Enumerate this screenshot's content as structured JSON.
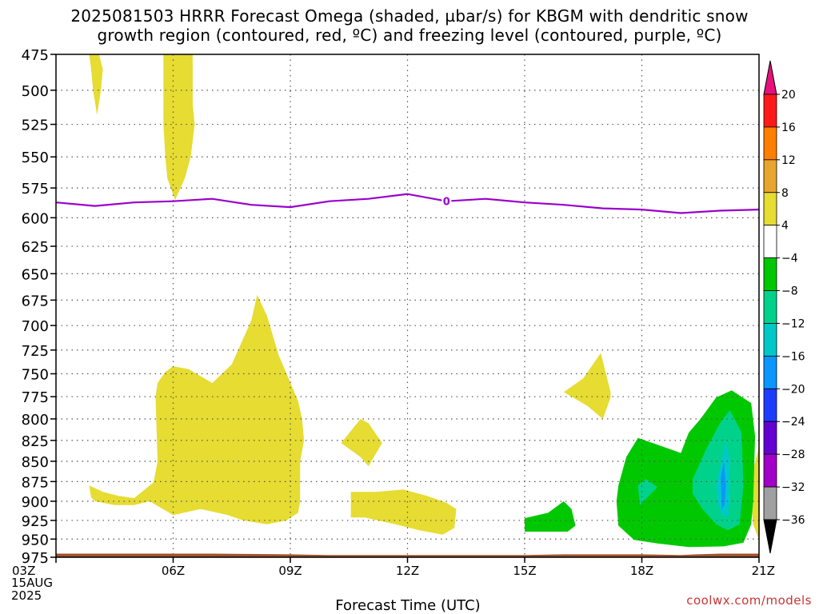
{
  "title_line1": "2025081503 HRRR Forecast Omega (shaded, µbar/s) for KBGM with dendritic snow",
  "title_line2": "growth region (contoured, red, ºC) and freezing level (contoured, purple, ºC)",
  "watermark": "coolwx.com/models",
  "chart_data": {
    "type": "heatmap",
    "xlabel": "Forecast Time (UTC)",
    "x_start_label": [
      "03Z",
      "15AUG",
      "2025"
    ],
    "x_ticks": [
      "03Z",
      "06Z",
      "09Z",
      "12Z",
      "15Z",
      "18Z",
      "21Z"
    ],
    "x_tick_hours": [
      3,
      6,
      9,
      12,
      15,
      18,
      21
    ],
    "xlim": [
      3,
      21
    ],
    "y_ticks": [
      475,
      500,
      525,
      550,
      575,
      600,
      625,
      650,
      675,
      700,
      725,
      750,
      775,
      800,
      825,
      850,
      875,
      900,
      925,
      950,
      975
    ],
    "ylim_hpa": [
      475,
      975
    ],
    "y_scale": "log-pressure",
    "grid": true,
    "colorbar_labels": [
      "20",
      "16",
      "12",
      "8",
      "4",
      "−4",
      "−8",
      "−12",
      "−16",
      "−20",
      "−24",
      "−28",
      "−32",
      "−36"
    ],
    "colorbar_colors": [
      "#ff1a1a",
      "#ff8000",
      "#e8a62e",
      "#e6dc32",
      "#ffffff",
      "#00c800",
      "#00d28c",
      "#00c8c8",
      "#0a96ff",
      "#1e3cff",
      "#6400d2",
      "#a000c8",
      "#a0a0a0"
    ],
    "colorbar_top_color": "#e6117a",
    "colorbar_bottom_color": "#000000",
    "colors": {
      "omega_plus4": "#e6dc32",
      "omega_minus4": "#00c800",
      "omega_minus8": "#00d28c",
      "omega_minus12": "#00c8c8",
      "omega_minus16": "#0a96ff",
      "freezing_level": "#9900cc",
      "terrain": "#a0522d"
    },
    "freezing_level": {
      "label": "0",
      "label_hour": 13.0,
      "hours": [
        3,
        4,
        5,
        6,
        7,
        8,
        9,
        10,
        11,
        12,
        13,
        14,
        15,
        16,
        17,
        18,
        19,
        20,
        21
      ],
      "hpa": [
        587,
        590,
        587,
        586,
        584,
        589,
        591,
        586,
        584,
        580,
        586,
        584,
        587,
        589,
        592,
        593,
        596,
        594,
        593
      ]
    },
    "omega_regions": [
      {
        "level": "4",
        "points": [
          [
            3.85,
            475
          ],
          [
            4.1,
            475
          ],
          [
            4.2,
            485
          ],
          [
            4.15,
            500
          ],
          [
            4.05,
            518
          ],
          [
            3.95,
            500
          ],
          [
            3.9,
            485
          ]
        ]
      },
      {
        "level": "4",
        "points": [
          [
            5.75,
            475
          ],
          [
            6.5,
            475
          ],
          [
            6.5,
            510
          ],
          [
            6.55,
            525
          ],
          [
            6.45,
            550
          ],
          [
            6.3,
            567
          ],
          [
            6.05,
            585
          ],
          [
            5.85,
            567
          ],
          [
            5.8,
            550
          ],
          [
            5.75,
            525
          ],
          [
            5.75,
            500
          ]
        ]
      },
      {
        "level": "4",
        "points": [
          [
            3.85,
            880
          ],
          [
            4.2,
            888
          ],
          [
            4.6,
            893
          ],
          [
            5.0,
            896
          ],
          [
            5.5,
            876
          ],
          [
            5.6,
            850
          ],
          [
            5.55,
            775
          ],
          [
            5.6,
            760
          ],
          [
            5.8,
            748
          ],
          [
            6.0,
            742
          ],
          [
            6.4,
            745
          ],
          [
            7.0,
            760
          ],
          [
            7.5,
            740
          ],
          [
            8.0,
            695
          ],
          [
            8.15,
            670
          ],
          [
            8.4,
            690
          ],
          [
            8.7,
            730
          ],
          [
            9.2,
            780
          ],
          [
            9.3,
            800
          ],
          [
            9.35,
            825
          ],
          [
            9.25,
            850
          ],
          [
            9.25,
            875
          ],
          [
            9.25,
            900
          ],
          [
            9.2,
            915
          ],
          [
            8.9,
            925
          ],
          [
            8.4,
            930
          ],
          [
            7.8,
            925
          ],
          [
            7.4,
            918
          ],
          [
            6.7,
            910
          ],
          [
            6.0,
            918
          ],
          [
            5.4,
            900
          ],
          [
            5.0,
            905
          ],
          [
            4.5,
            905
          ],
          [
            4.0,
            900
          ],
          [
            3.9,
            895
          ]
        ]
      },
      {
        "level": "4",
        "points": [
          [
            10.3,
            828
          ],
          [
            10.8,
            800
          ],
          [
            11.0,
            805
          ],
          [
            11.35,
            828
          ],
          [
            11.0,
            856
          ],
          [
            10.8,
            845
          ]
        ]
      },
      {
        "level": "4",
        "points": [
          [
            10.55,
            888
          ],
          [
            11.2,
            888
          ],
          [
            11.9,
            885
          ],
          [
            12.5,
            893
          ],
          [
            13.0,
            902
          ],
          [
            13.25,
            910
          ],
          [
            13.2,
            935
          ],
          [
            12.9,
            944
          ],
          [
            12.3,
            938
          ],
          [
            11.6,
            929
          ],
          [
            10.9,
            921
          ],
          [
            10.55,
            921
          ]
        ]
      },
      {
        "level": "4",
        "points": [
          [
            16.0,
            770
          ],
          [
            16.5,
            755
          ],
          [
            16.95,
            728
          ],
          [
            17.2,
            770
          ],
          [
            17.2,
            776
          ],
          [
            17.0,
            800
          ],
          [
            16.6,
            785
          ]
        ]
      },
      {
        "level": "4",
        "points": [
          [
            20.85,
            860
          ],
          [
            21.0,
            833
          ],
          [
            21.0,
            951
          ],
          [
            20.85,
            930
          ],
          [
            20.8,
            900
          ]
        ]
      },
      {
        "level": "-4",
        "points": [
          [
            15.0,
            922
          ],
          [
            15.6,
            915
          ],
          [
            16.0,
            900
          ],
          [
            16.2,
            910
          ],
          [
            16.3,
            932
          ],
          [
            16.1,
            940
          ],
          [
            15.0,
            940
          ]
        ]
      },
      {
        "level": "-4",
        "points": [
          [
            17.4,
            880
          ],
          [
            17.6,
            845
          ],
          [
            17.9,
            822
          ],
          [
            18.4,
            830
          ],
          [
            19.0,
            840
          ],
          [
            19.2,
            816
          ],
          [
            19.5,
            800
          ],
          [
            19.9,
            776
          ],
          [
            20.3,
            768
          ],
          [
            20.8,
            782
          ],
          [
            20.9,
            820
          ],
          [
            20.85,
            900
          ],
          [
            20.8,
            930
          ],
          [
            20.6,
            955
          ],
          [
            20.1,
            960
          ],
          [
            19.2,
            961
          ],
          [
            18.4,
            956
          ],
          [
            17.8,
            951
          ],
          [
            17.4,
            932
          ],
          [
            17.35,
            900
          ]
        ]
      },
      {
        "level": "-8",
        "points": [
          [
            19.3,
            872
          ],
          [
            19.65,
            835
          ],
          [
            20.0,
            805
          ],
          [
            20.25,
            790
          ],
          [
            20.55,
            815
          ],
          [
            20.6,
            880
          ],
          [
            20.5,
            930
          ],
          [
            20.2,
            938
          ],
          [
            19.9,
            930
          ],
          [
            19.55,
            910
          ],
          [
            19.3,
            890
          ]
        ]
      },
      {
        "level": "-8",
        "points": [
          [
            17.9,
            880
          ],
          [
            18.1,
            872
          ],
          [
            18.4,
            882
          ],
          [
            18.1,
            897
          ],
          [
            17.95,
            905
          ]
        ]
      },
      {
        "level": "-12",
        "points": [
          [
            19.9,
            880
          ],
          [
            20.05,
            845
          ],
          [
            20.15,
            825
          ],
          [
            20.25,
            850
          ],
          [
            20.25,
            900
          ],
          [
            20.2,
            920
          ],
          [
            20.05,
            918
          ],
          [
            19.95,
            905
          ]
        ]
      },
      {
        "level": "-16",
        "points": [
          [
            20.02,
            870
          ],
          [
            20.1,
            850
          ],
          [
            20.15,
            880
          ],
          [
            20.12,
            905
          ],
          [
            20.05,
            910
          ]
        ]
      }
    ],
    "terrain_hpa": [
      [
        3,
        970
      ],
      [
        7.0,
        970
      ],
      [
        9.0,
        971
      ],
      [
        10,
        972
      ],
      [
        15,
        972
      ],
      [
        16,
        971
      ],
      [
        18,
        971
      ],
      [
        19,
        972
      ],
      [
        19.4,
        971
      ],
      [
        20,
        970
      ],
      [
        21,
        970
      ]
    ]
  }
}
